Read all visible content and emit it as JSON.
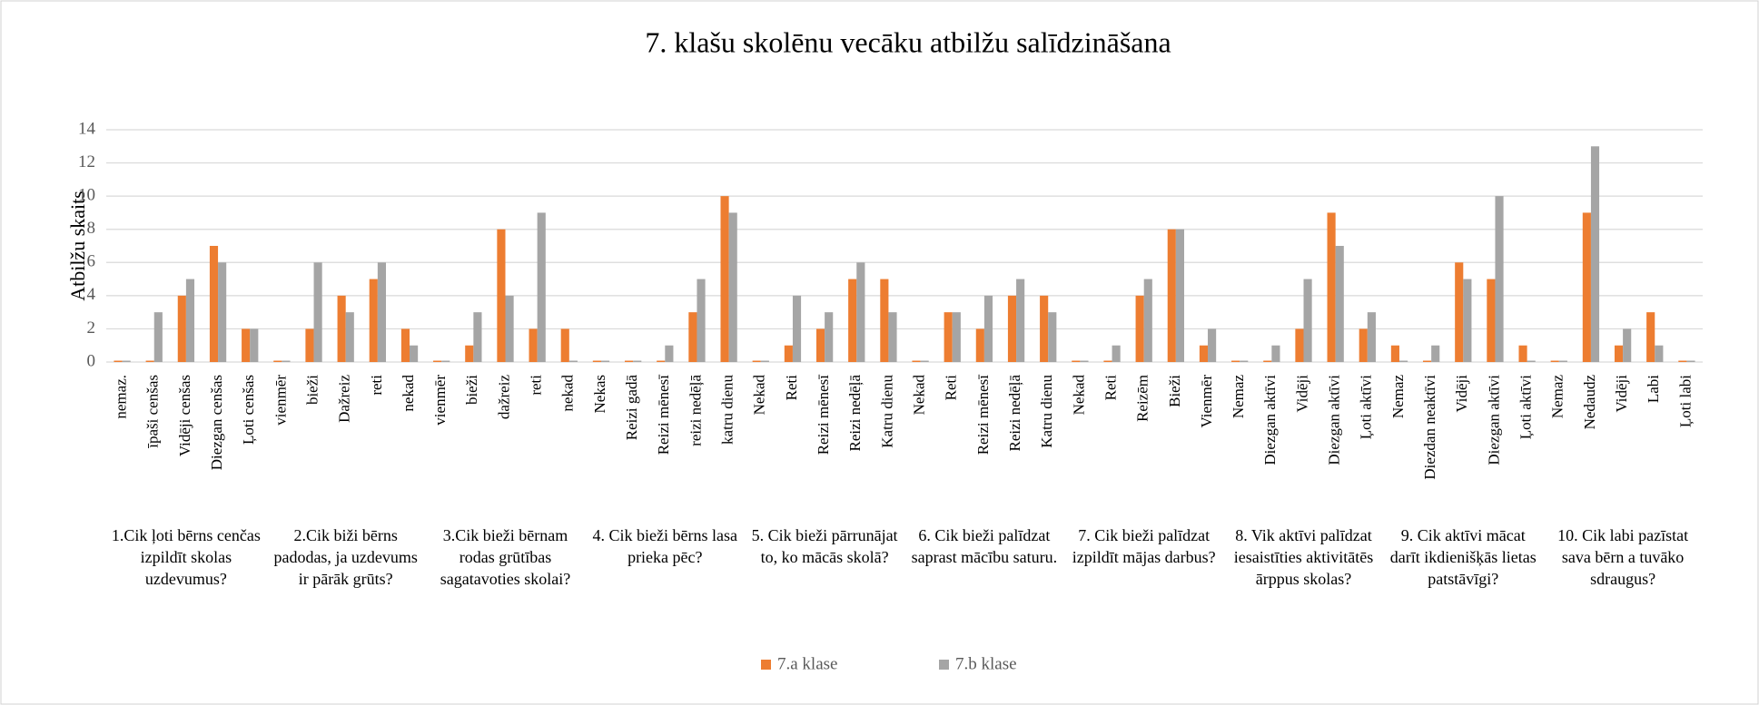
{
  "chart_data": {
    "type": "bar",
    "title": "7. klašu skolēnu vecāku atbilžu salīdzināšana",
    "y_label": "Atbilžu skaits",
    "categories": [
      "nemaz.",
      "īpaši cenšas",
      "Vidēji cenšas",
      "Diezgan cenšas",
      "Ļoti cenšas",
      "vienmēr",
      "bieži",
      "Dažreiz",
      "reti",
      "nekad",
      "vienmēr",
      "bieži",
      "dažreiz",
      "reti",
      "nekad",
      "Nekas",
      "Reizi gadā",
      "Reizi mēnesī",
      "reizi nedēļā",
      "katru dienu",
      "Nekad",
      "Reti",
      "Reizi mēnesī",
      "Reizi nedēļā",
      "Katru dienu",
      "Nekad",
      "Reti",
      "Reizi mēnesī",
      "Reizi nedēļā",
      "Katru dienu",
      "Nekad",
      "Reti",
      "Reizēm",
      "Bieži",
      "Vienmēr",
      "Nemaz",
      "Diezgan aktīvi",
      "Vidēji",
      "Diezgan aktīvi",
      "Ļoti aktīvi",
      "Nemaz",
      "Diezdan neaktīvi",
      "Vidēji",
      "Diezgan aktīvi",
      "Ļoti aktīvi",
      "Nemaz",
      "Nedaudz",
      "Vidēji",
      "Labi",
      "Ļoti labi"
    ],
    "groups": [
      "1.Cik ļoti bērns cenčas izpildīt skolas uzdevumus?",
      "2.Cik biži bērns padodas, ja uzdevums ir pārāk grūts?",
      "3.Cik bieži bērnam rodas grūtības sagatavoties skolai?",
      "4. Cik bieži bērns lasa prieka pēc?",
      "5. Cik bieži pārrunājat to, ko mācās skolā?",
      "6. Cik bieži palīdzat saprast mācību saturu.",
      "7. Cik bieži palīdzat izpildīt mājas darbus?",
      "8. Vik aktīvi palīdzat iesaistīties aktivitātēs ārppus skolas?",
      "9. Cik aktīvi mācat darīt ikdienišķās lietas patstāvīgi?",
      "10. Cik labi pazīstat sava bērn a tuvāko sdraugus?"
    ],
    "series": [
      {
        "name": "7.a klase",
        "color": "#ed7d31",
        "values": [
          0,
          0,
          4,
          7,
          2,
          0,
          2,
          4,
          5,
          2,
          0,
          1,
          8,
          2,
          2,
          0,
          0,
          0,
          3,
          10,
          0,
          1,
          2,
          5,
          5,
          0,
          3,
          2,
          4,
          4,
          0,
          0,
          4,
          8,
          1,
          0,
          0,
          2,
          9,
          2,
          1,
          0,
          6,
          5,
          1,
          0,
          9,
          1,
          3,
          0
        ]
      },
      {
        "name": "7.b klase",
        "color": "#a5a5a5",
        "values": [
          0,
          3,
          5,
          6,
          2,
          0,
          6,
          3,
          6,
          1,
          0,
          3,
          4,
          9,
          0,
          0,
          0,
          1,
          5,
          9,
          0,
          4,
          3,
          6,
          3,
          0,
          3,
          4,
          5,
          3,
          0,
          1,
          5,
          8,
          2,
          0,
          1,
          5,
          7,
          3,
          0,
          1,
          5,
          10,
          0,
          0,
          13,
          2,
          1,
          0
        ]
      }
    ],
    "ylim": [
      0,
      14
    ],
    "yticks": [
      0,
      2,
      4,
      6,
      8,
      10,
      12,
      14
    ],
    "grid": true,
    "legend": "bottom"
  }
}
